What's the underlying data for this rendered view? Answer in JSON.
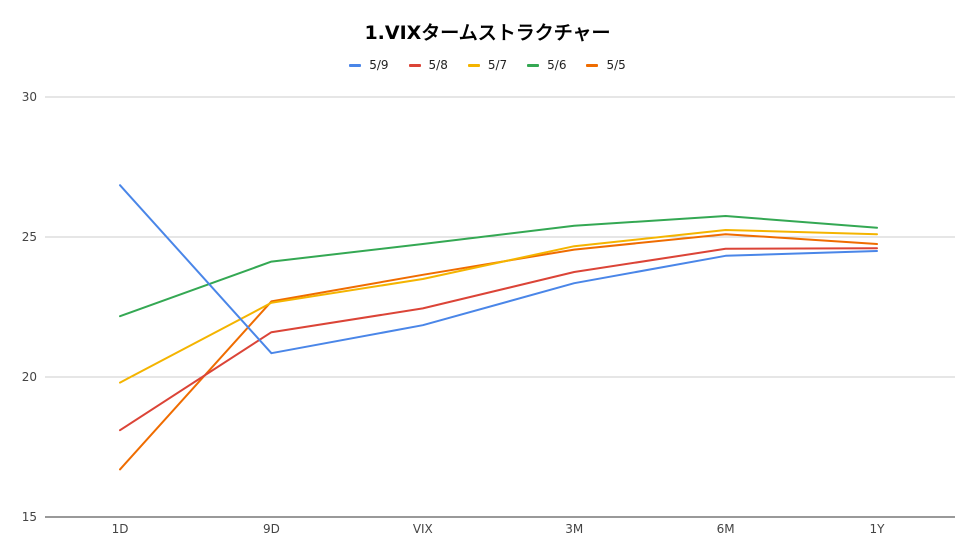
{
  "chart_data": {
    "type": "line",
    "title": "1.VIXタームストラクチャー",
    "xlabel": "",
    "ylabel": "",
    "categories": [
      "1D",
      "9D",
      "VIX",
      "3M",
      "6M",
      "1Y"
    ],
    "ylim": [
      15,
      30
    ],
    "yticks": [
      15,
      20,
      25,
      30
    ],
    "grid": true,
    "legend_position": "top",
    "series": [
      {
        "name": "5/9",
        "color": "#4a86e8",
        "values": [
          26.85,
          20.85,
          21.85,
          23.35,
          24.33,
          24.5
        ]
      },
      {
        "name": "5/8",
        "color": "#db4437",
        "values": [
          18.1,
          21.6,
          22.45,
          23.75,
          24.58,
          24.6
        ]
      },
      {
        "name": "5/7",
        "color": "#f4b400",
        "values": [
          19.8,
          22.65,
          23.5,
          24.67,
          25.25,
          25.1
        ]
      },
      {
        "name": "5/6",
        "color": "#34a853",
        "values": [
          22.17,
          24.12,
          24.75,
          25.4,
          25.75,
          25.33
        ]
      },
      {
        "name": "5/5",
        "color": "#ef6c00",
        "values": [
          16.7,
          22.7,
          23.65,
          24.55,
          25.1,
          24.75
        ]
      }
    ]
  }
}
